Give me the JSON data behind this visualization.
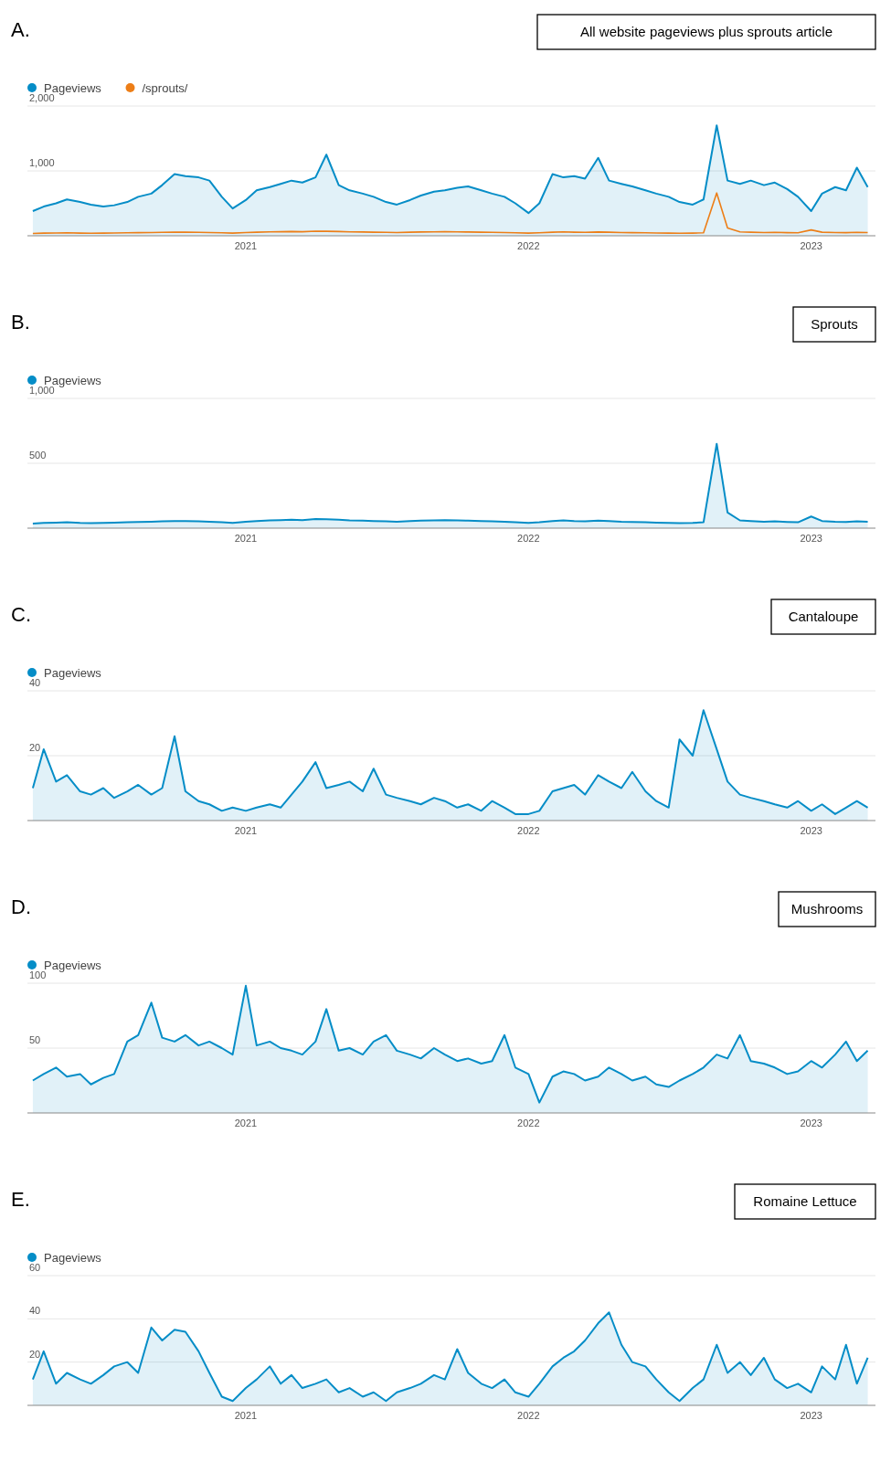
{
  "chart_data": [
    {
      "type": "area",
      "title": "A.",
      "subtitle": "All website pageviews plus sprouts article",
      "legend": "top left",
      "grid": "y",
      "x": [
        "2020-04-01",
        "2020-04-15",
        "2020-05-01",
        "2020-05-15",
        "2020-06-01",
        "2020-06-15",
        "2020-07-01",
        "2020-07-15",
        "2020-08-01",
        "2020-08-15",
        "2020-09-01",
        "2020-09-15",
        "2020-10-01",
        "2020-10-15",
        "2020-11-01",
        "2020-11-15",
        "2020-12-01",
        "2020-12-15",
        "2021-01-01",
        "2021-01-15",
        "2021-02-01",
        "2021-02-15",
        "2021-03-01",
        "2021-03-15",
        "2021-04-01",
        "2021-04-15",
        "2021-05-01",
        "2021-05-15",
        "2021-06-01",
        "2021-06-15",
        "2021-07-01",
        "2021-07-15",
        "2021-08-01",
        "2021-08-15",
        "2021-09-01",
        "2021-09-15",
        "2021-10-01",
        "2021-10-15",
        "2021-11-01",
        "2021-11-15",
        "2021-12-01",
        "2021-12-15",
        "2022-01-01",
        "2022-01-15",
        "2022-02-01",
        "2022-02-15",
        "2022-03-01",
        "2022-03-15",
        "2022-04-01",
        "2022-04-15",
        "2022-05-01",
        "2022-05-15",
        "2022-06-01",
        "2022-06-15",
        "2022-07-01",
        "2022-07-15",
        "2022-08-01",
        "2022-08-15",
        "2022-09-01",
        "2022-09-15",
        "2022-10-01",
        "2022-10-15",
        "2022-11-01",
        "2022-11-15",
        "2022-12-01",
        "2022-12-15",
        "2023-01-01",
        "2023-01-15",
        "2023-02-01",
        "2023-02-15",
        "2023-03-01",
        "2023-03-15"
      ],
      "xlim": [
        "2020-03-25",
        "2023-03-25"
      ],
      "xticks": [
        "2021",
        "2022",
        "2023"
      ],
      "ylim": [
        0,
        2000
      ],
      "yticks": [
        {
          "value": 0,
          "label": null
        },
        {
          "value": 1000,
          "label": "1,000"
        },
        {
          "value": 2000,
          "label": "2,000"
        }
      ],
      "series": [
        {
          "name": "Pageviews",
          "color": "#058dc7",
          "values": [
            380,
            450,
            500,
            560,
            520,
            480,
            450,
            470,
            520,
            600,
            650,
            780,
            950,
            920,
            900,
            850,
            600,
            420,
            550,
            700,
            750,
            800,
            850,
            820,
            900,
            1250,
            780,
            700,
            650,
            600,
            520,
            480,
            550,
            620,
            680,
            700,
            740,
            760,
            700,
            650,
            600,
            500,
            350,
            500,
            950,
            900,
            920,
            880,
            1200,
            850,
            800,
            760,
            700,
            650,
            600,
            520,
            480,
            560,
            1700,
            850,
            800,
            850,
            780,
            820,
            720,
            600,
            380,
            650,
            750,
            700,
            1050,
            750
          ]
        },
        {
          "name": "/sprouts/",
          "type": "line",
          "color": "#ed7e17",
          "values": [
            35,
            40,
            42,
            45,
            40,
            38,
            40,
            42,
            45,
            48,
            50,
            52,
            55,
            55,
            52,
            50,
            45,
            40,
            50,
            55,
            60,
            62,
            65,
            62,
            70,
            68,
            65,
            60,
            58,
            55,
            52,
            50,
            55,
            58,
            60,
            62,
            60,
            58,
            55,
            52,
            50,
            45,
            40,
            45,
            55,
            60,
            55,
            52,
            58,
            55,
            50,
            48,
            45,
            42,
            40,
            38,
            40,
            45,
            660,
            120,
            60,
            55,
            50,
            52,
            48,
            45,
            90,
            55,
            50,
            48,
            52,
            50
          ]
        }
      ]
    },
    {
      "type": "area",
      "title": "B.",
      "subtitle": "Sprouts",
      "legend": "top left",
      "grid": "y",
      "x": [
        "2020-04-01",
        "2020-04-15",
        "2020-05-01",
        "2020-05-15",
        "2020-06-01",
        "2020-06-15",
        "2020-07-01",
        "2020-07-15",
        "2020-08-01",
        "2020-08-15",
        "2020-09-01",
        "2020-09-15",
        "2020-10-01",
        "2020-10-15",
        "2020-11-01",
        "2020-11-15",
        "2020-12-01",
        "2020-12-15",
        "2021-01-01",
        "2021-01-15",
        "2021-02-01",
        "2021-02-15",
        "2021-03-01",
        "2021-03-15",
        "2021-04-01",
        "2021-04-15",
        "2021-05-01",
        "2021-05-15",
        "2021-06-01",
        "2021-06-15",
        "2021-07-01",
        "2021-07-15",
        "2021-08-01",
        "2021-08-15",
        "2021-09-01",
        "2021-09-15",
        "2021-10-01",
        "2021-10-15",
        "2021-11-01",
        "2021-11-15",
        "2021-12-01",
        "2021-12-15",
        "2022-01-01",
        "2022-01-15",
        "2022-02-01",
        "2022-02-15",
        "2022-03-01",
        "2022-03-15",
        "2022-04-01",
        "2022-04-15",
        "2022-05-01",
        "2022-05-15",
        "2022-06-01",
        "2022-06-15",
        "2022-07-01",
        "2022-07-15",
        "2022-08-01",
        "2022-08-15",
        "2022-09-01",
        "2022-09-15",
        "2022-10-01",
        "2022-10-15",
        "2022-11-01",
        "2022-11-15",
        "2022-12-01",
        "2022-12-15",
        "2023-01-01",
        "2023-01-15",
        "2023-02-01",
        "2023-02-15",
        "2023-03-01",
        "2023-03-15"
      ],
      "xlim": [
        "2020-03-25",
        "2023-03-25"
      ],
      "xticks": [
        "2021",
        "2022",
        "2023"
      ],
      "ylim": [
        0,
        1000
      ],
      "yticks": [
        {
          "value": 0,
          "label": null
        },
        500,
        {
          "value": 1000,
          "label": "1,000"
        }
      ],
      "series": [
        {
          "name": "Pageviews",
          "color": "#058dc7",
          "values": [
            35,
            40,
            42,
            45,
            40,
            38,
            40,
            42,
            45,
            48,
            50,
            52,
            55,
            55,
            52,
            50,
            45,
            40,
            50,
            55,
            60,
            62,
            65,
            62,
            70,
            68,
            65,
            60,
            58,
            55,
            52,
            50,
            55,
            58,
            60,
            62,
            60,
            58,
            55,
            52,
            50,
            45,
            40,
            45,
            55,
            60,
            55,
            52,
            58,
            55,
            50,
            48,
            45,
            42,
            40,
            38,
            40,
            45,
            650,
            120,
            60,
            55,
            50,
            52,
            48,
            45,
            90,
            55,
            50,
            48,
            52,
            50
          ]
        }
      ]
    },
    {
      "type": "area",
      "title": "C.",
      "subtitle": "Cantaloupe",
      "legend": "top left",
      "grid": "y",
      "x": [
        "2020-04-01",
        "2020-04-15",
        "2020-05-01",
        "2020-05-15",
        "2020-06-01",
        "2020-06-15",
        "2020-07-01",
        "2020-07-15",
        "2020-08-01",
        "2020-08-15",
        "2020-09-01",
        "2020-09-15",
        "2020-10-01",
        "2020-10-15",
        "2020-11-01",
        "2020-11-15",
        "2020-12-01",
        "2020-12-15",
        "2021-01-01",
        "2021-01-15",
        "2021-02-01",
        "2021-02-15",
        "2021-03-01",
        "2021-03-15",
        "2021-04-01",
        "2021-04-15",
        "2021-05-01",
        "2021-05-15",
        "2021-06-01",
        "2021-06-15",
        "2021-07-01",
        "2021-07-15",
        "2021-08-01",
        "2021-08-15",
        "2021-09-01",
        "2021-09-15",
        "2021-10-01",
        "2021-10-15",
        "2021-11-01",
        "2021-11-15",
        "2021-12-01",
        "2021-12-15",
        "2022-01-01",
        "2022-01-15",
        "2022-02-01",
        "2022-02-15",
        "2022-03-01",
        "2022-03-15",
        "2022-04-01",
        "2022-04-15",
        "2022-05-01",
        "2022-05-15",
        "2022-06-01",
        "2022-06-15",
        "2022-07-01",
        "2022-07-15",
        "2022-08-01",
        "2022-08-15",
        "2022-09-01",
        "2022-09-15",
        "2022-10-01",
        "2022-10-15",
        "2022-11-01",
        "2022-11-15",
        "2022-12-01",
        "2022-12-15",
        "2023-01-01",
        "2023-01-15",
        "2023-02-01",
        "2023-02-15",
        "2023-03-01",
        "2023-03-15"
      ],
      "xlim": [
        "2020-03-25",
        "2023-03-25"
      ],
      "xticks": [
        "2021",
        "2022",
        "2023"
      ],
      "ylim": [
        0,
        40
      ],
      "yticks": [
        {
          "value": 0,
          "label": null
        },
        20,
        40
      ],
      "series": [
        {
          "name": "Pageviews",
          "color": "#058dc7",
          "values": [
            10,
            22,
            12,
            14,
            9,
            8,
            10,
            7,
            9,
            11,
            8,
            10,
            26,
            9,
            6,
            5,
            3,
            4,
            3,
            4,
            5,
            4,
            8,
            12,
            18,
            10,
            11,
            12,
            9,
            16,
            8,
            7,
            6,
            5,
            7,
            6,
            4,
            5,
            3,
            6,
            4,
            2,
            2,
            3,
            9,
            10,
            11,
            8,
            14,
            12,
            10,
            15,
            9,
            6,
            4,
            25,
            20,
            34,
            22,
            12,
            8,
            7,
            6,
            5,
            4,
            6,
            3,
            5,
            2,
            4,
            6,
            4
          ]
        }
      ]
    },
    {
      "type": "area",
      "title": "D.",
      "subtitle": "Mushrooms",
      "legend": "top left",
      "grid": "y",
      "x": [
        "2020-04-01",
        "2020-04-15",
        "2020-05-01",
        "2020-05-15",
        "2020-06-01",
        "2020-06-15",
        "2020-07-01",
        "2020-07-15",
        "2020-08-01",
        "2020-08-15",
        "2020-09-01",
        "2020-09-15",
        "2020-10-01",
        "2020-10-15",
        "2020-11-01",
        "2020-11-15",
        "2020-12-01",
        "2020-12-15",
        "2021-01-01",
        "2021-01-15",
        "2021-02-01",
        "2021-02-15",
        "2021-03-01",
        "2021-03-15",
        "2021-04-01",
        "2021-04-15",
        "2021-05-01",
        "2021-05-15",
        "2021-06-01",
        "2021-06-15",
        "2021-07-01",
        "2021-07-15",
        "2021-08-01",
        "2021-08-15",
        "2021-09-01",
        "2021-09-15",
        "2021-10-01",
        "2021-10-15",
        "2021-11-01",
        "2021-11-15",
        "2021-12-01",
        "2021-12-15",
        "2022-01-01",
        "2022-01-15",
        "2022-02-01",
        "2022-02-15",
        "2022-03-01",
        "2022-03-15",
        "2022-04-01",
        "2022-04-15",
        "2022-05-01",
        "2022-05-15",
        "2022-06-01",
        "2022-06-15",
        "2022-07-01",
        "2022-07-15",
        "2022-08-01",
        "2022-08-15",
        "2022-09-01",
        "2022-09-15",
        "2022-10-01",
        "2022-10-15",
        "2022-11-01",
        "2022-11-15",
        "2022-12-01",
        "2022-12-15",
        "2023-01-01",
        "2023-01-15",
        "2023-02-01",
        "2023-02-15",
        "2023-03-01",
        "2023-03-15"
      ],
      "xlim": [
        "2020-03-25",
        "2023-03-25"
      ],
      "xticks": [
        "2021",
        "2022",
        "2023"
      ],
      "ylim": [
        0,
        100
      ],
      "yticks": [
        {
          "value": 0,
          "label": null
        },
        50,
        100
      ],
      "series": [
        {
          "name": "Pageviews",
          "color": "#058dc7",
          "values": [
            25,
            30,
            35,
            28,
            30,
            22,
            27,
            30,
            55,
            60,
            85,
            58,
            55,
            60,
            52,
            55,
            50,
            45,
            98,
            52,
            55,
            50,
            48,
            45,
            55,
            80,
            48,
            50,
            45,
            55,
            60,
            48,
            45,
            42,
            50,
            45,
            40,
            42,
            38,
            40,
            60,
            35,
            30,
            8,
            28,
            32,
            30,
            25,
            28,
            35,
            30,
            25,
            28,
            22,
            20,
            25,
            30,
            35,
            45,
            42,
            60,
            40,
            38,
            35,
            30,
            32,
            40,
            35,
            45,
            55,
            40,
            48
          ]
        }
      ]
    },
    {
      "type": "area",
      "title": "E.",
      "subtitle": "Romaine Lettuce",
      "legend": "top left",
      "grid": "y",
      "x": [
        "2020-04-01",
        "2020-04-15",
        "2020-05-01",
        "2020-05-15",
        "2020-06-01",
        "2020-06-15",
        "2020-07-01",
        "2020-07-15",
        "2020-08-01",
        "2020-08-15",
        "2020-09-01",
        "2020-09-15",
        "2020-10-01",
        "2020-10-15",
        "2020-11-01",
        "2020-11-15",
        "2020-12-01",
        "2020-12-15",
        "2021-01-01",
        "2021-01-15",
        "2021-02-01",
        "2021-02-15",
        "2021-03-01",
        "2021-03-15",
        "2021-04-01",
        "2021-04-15",
        "2021-05-01",
        "2021-05-15",
        "2021-06-01",
        "2021-06-15",
        "2021-07-01",
        "2021-07-15",
        "2021-08-01",
        "2021-08-15",
        "2021-09-01",
        "2021-09-15",
        "2021-10-01",
        "2021-10-15",
        "2021-11-01",
        "2021-11-15",
        "2021-12-01",
        "2021-12-15",
        "2022-01-01",
        "2022-01-15",
        "2022-02-01",
        "2022-02-15",
        "2022-03-01",
        "2022-03-15",
        "2022-04-01",
        "2022-04-15",
        "2022-05-01",
        "2022-05-15",
        "2022-06-01",
        "2022-06-15",
        "2022-07-01",
        "2022-07-15",
        "2022-08-01",
        "2022-08-15",
        "2022-09-01",
        "2022-09-15",
        "2022-10-01",
        "2022-10-15",
        "2022-11-01",
        "2022-11-15",
        "2022-12-01",
        "2022-12-15",
        "2023-01-01",
        "2023-01-15",
        "2023-02-01",
        "2023-02-15",
        "2023-03-01",
        "2023-03-15"
      ],
      "xlim": [
        "2020-03-25",
        "2023-03-25"
      ],
      "xticks": [
        "2021",
        "2022",
        "2023"
      ],
      "ylim": [
        0,
        60
      ],
      "yticks": [
        {
          "value": 0,
          "label": null
        },
        20,
        40,
        60
      ],
      "series": [
        {
          "name": "Pageviews",
          "color": "#058dc7",
          "values": [
            12,
            25,
            10,
            15,
            12,
            10,
            14,
            18,
            20,
            15,
            36,
            30,
            35,
            34,
            25,
            15,
            4,
            2,
            8,
            12,
            18,
            10,
            14,
            8,
            10,
            12,
            6,
            8,
            4,
            6,
            2,
            6,
            8,
            10,
            14,
            12,
            26,
            15,
            10,
            8,
            12,
            6,
            4,
            10,
            18,
            22,
            25,
            30,
            38,
            43,
            28,
            20,
            18,
            12,
            6,
            2,
            8,
            12,
            28,
            15,
            20,
            14,
            22,
            12,
            8,
            10,
            6,
            18,
            12,
            28,
            10,
            22
          ]
        }
      ]
    }
  ]
}
